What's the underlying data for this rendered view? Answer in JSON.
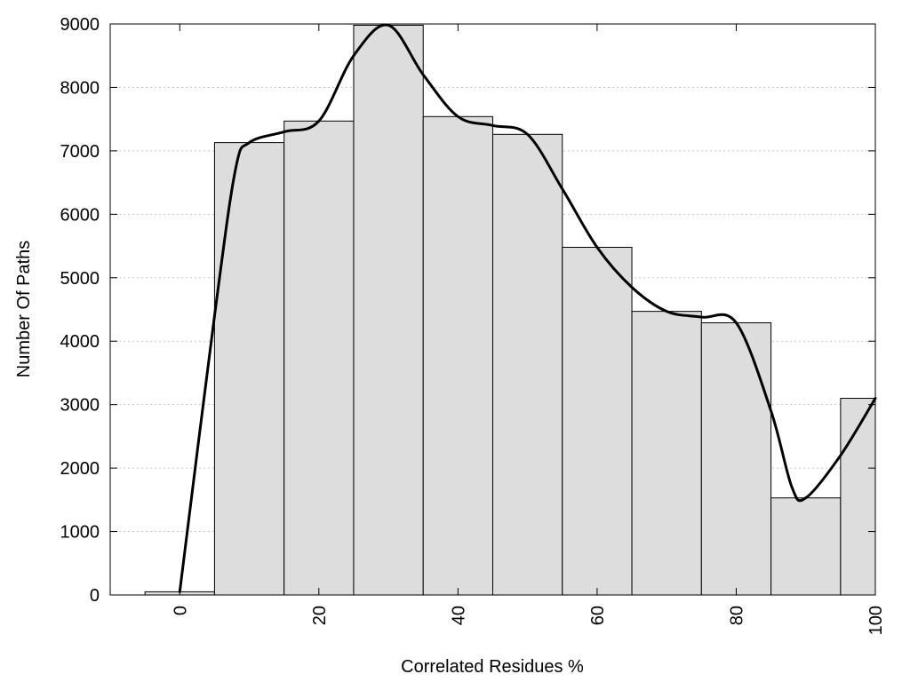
{
  "chart_data": {
    "type": "bar",
    "title": "",
    "xlabel": "Correlated Residues %",
    "ylabel": "Number Of Paths",
    "xlim": [
      -10,
      100
    ],
    "ylim": [
      0,
      9000
    ],
    "grid": "horizontal dotted",
    "bin_width": 10,
    "x": [
      0,
      10,
      20,
      30,
      40,
      50,
      60,
      70,
      80,
      90,
      100
    ],
    "values": [
      50,
      7130,
      7470,
      8980,
      7540,
      7260,
      5480,
      4470,
      4290,
      1530,
      3100
    ],
    "x_ticks": [
      0,
      20,
      40,
      60,
      80,
      100
    ],
    "x_tick_labels": [
      "0",
      "20",
      "40",
      "60",
      "80",
      "100"
    ],
    "y_ticks": [
      0,
      1000,
      2000,
      3000,
      4000,
      5000,
      6000,
      7000,
      8000,
      9000
    ],
    "y_tick_labels": [
      "0",
      "1000",
      "2000",
      "3000",
      "4000",
      "5000",
      "6000",
      "7000",
      "8000",
      "9000"
    ],
    "curve": {
      "x": [
        0,
        5,
        8,
        10,
        15,
        20,
        25,
        30,
        35,
        40,
        45,
        50,
        55,
        60,
        65,
        70,
        75,
        80,
        85,
        88,
        90,
        95,
        100
      ],
      "y": [
        50,
        4400,
        6700,
        7130,
        7300,
        7470,
        8500,
        8980,
        8200,
        7540,
        7400,
        7260,
        6400,
        5480,
        4850,
        4470,
        4380,
        4290,
        2900,
        1700,
        1530,
        2200,
        3100
      ]
    },
    "colors": {
      "bar_fill": "#dddddd",
      "bar_stroke": "#000000",
      "curve": "#000000",
      "grid": "#c8c8c8"
    }
  }
}
